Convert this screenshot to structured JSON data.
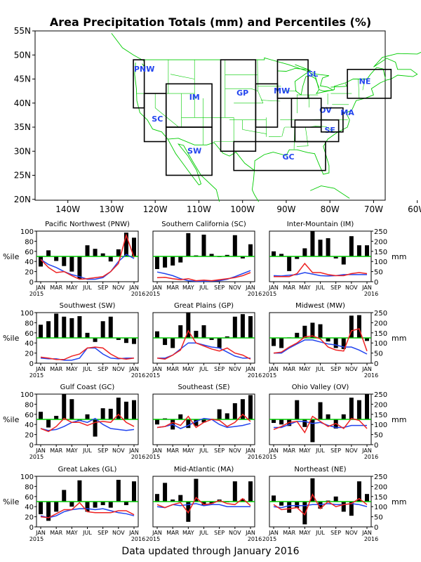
{
  "page": {
    "title": "Area Precipitation Totals (mm) and Percentiles (%)",
    "footer": "Data updated through January 2016"
  },
  "colors": {
    "land_outline": "#00cc00",
    "region_box": "#000000",
    "region_label": "#2244ee",
    "bars": "#000000",
    "pct_line": "#00cc00",
    "precip_line": "#ee2222",
    "normal_line": "#2244ee"
  },
  "map": {
    "lon_ticks": [
      "140W",
      "130W",
      "120W",
      "110W",
      "100W",
      "90W",
      "80W",
      "70W",
      "60W"
    ],
    "lat_ticks": [
      "55N",
      "50N",
      "45N",
      "40N",
      "35N",
      "30N",
      "25N",
      "20N"
    ],
    "regions": [
      "PNW",
      "SC",
      "IM",
      "GP",
      "SW",
      "MW",
      "GL",
      "OV",
      "SE",
      "NE",
      "MA",
      "GC"
    ]
  },
  "axes": {
    "pct_ticks": [
      "0",
      "20",
      "40",
      "60",
      "80",
      "100"
    ],
    "mm_ticks": [
      "0",
      "50",
      "100",
      "150",
      "200",
      "250"
    ],
    "pct_label": "%ile",
    "mm_label": "mm",
    "month_ticks": [
      "JAN",
      "MAR",
      "MAY",
      "JUL",
      "SEP",
      "NOV",
      "JAN"
    ],
    "year_start": "2015",
    "year_end": "2016"
  },
  "chart_data": [
    {
      "type": "bar+line",
      "title": "Pacific Northwest (PNW)",
      "months": [
        "JAN 2015",
        "FEB",
        "MAR",
        "APR",
        "MAY",
        "JUN",
        "JUL",
        "AUG",
        "SEP",
        "OCT",
        "NOV",
        "DEC",
        "JAN 2016"
      ],
      "ylim": [
        0,
        100
      ],
      "y2lim": [
        0,
        250
      ],
      "percentile": [
        30,
        62,
        41,
        31,
        20,
        6,
        72,
        65,
        56,
        40,
        64,
        97,
        87
      ],
      "precip_mm": [
        110,
        70,
        45,
        50,
        30,
        12,
        15,
        20,
        25,
        50,
        90,
        230,
        120
      ],
      "normal_mm": [
        110,
        85,
        70,
        50,
        35,
        25,
        12,
        12,
        20,
        50,
        100,
        135,
        115
      ]
    },
    {
      "type": "bar+line",
      "title": "Southern California (SC)",
      "months": [
        "JAN 2015",
        "FEB",
        "MAR",
        "APR",
        "MAY",
        "JUN",
        "JUL",
        "AUG",
        "SEP",
        "OCT",
        "NOV",
        "DEC",
        "JAN 2016"
      ],
      "ylim": [
        0,
        100
      ],
      "y2lim": [
        0,
        250
      ],
      "percentile": [
        25,
        28,
        32,
        38,
        96,
        52,
        93,
        55,
        50,
        53,
        92,
        46,
        74
      ],
      "precip_mm": [
        20,
        22,
        15,
        10,
        15,
        5,
        8,
        5,
        10,
        15,
        20,
        30,
        45
      ],
      "normal_mm": [
        48,
        40,
        30,
        15,
        5,
        2,
        2,
        3,
        5,
        12,
        25,
        40,
        55
      ]
    },
    {
      "type": "bar+line",
      "title": "Inter-Mountain (IM)",
      "months": [
        "JAN 2015",
        "FEB",
        "MAR",
        "APR",
        "MAY",
        "JUN",
        "JUL",
        "AUG",
        "SEP",
        "OCT",
        "NOV",
        "DEC",
        "JAN 2016"
      ],
      "ylim": [
        0,
        100
      ],
      "y2lim": [
        0,
        250
      ],
      "percentile": [
        60,
        55,
        21,
        45,
        66,
        100,
        83,
        86,
        46,
        34,
        90,
        72,
        72
      ],
      "precip_mm": [
        25,
        25,
        25,
        40,
        90,
        45,
        45,
        35,
        30,
        30,
        40,
        45,
        40
      ],
      "normal_mm": [
        30,
        28,
        32,
        35,
        45,
        38,
        30,
        28,
        30,
        35,
        35,
        35,
        35
      ]
    },
    {
      "type": "bar+line",
      "title": "Southwest (SW)",
      "months": [
        "JAN 2015",
        "FEB",
        "MAR",
        "APR",
        "MAY",
        "JUN",
        "JUL",
        "AUG",
        "SEP",
        "OCT",
        "NOV",
        "DEC",
        "JAN 2016"
      ],
      "ylim": [
        0,
        100
      ],
      "y2lim": [
        0,
        250
      ],
      "percentile": [
        76,
        83,
        98,
        92,
        89,
        93,
        60,
        42,
        83,
        92,
        46,
        40,
        38
      ],
      "precip_mm": [
        30,
        25,
        18,
        18,
        35,
        45,
        75,
        80,
        75,
        45,
        25,
        20,
        25
      ],
      "normal_mm": [
        25,
        22,
        22,
        15,
        15,
        25,
        75,
        75,
        45,
        25,
        22,
        25,
        25
      ]
    },
    {
      "type": "bar+line",
      "title": "Great Plains (GP)",
      "months": [
        "JAN 2015",
        "FEB",
        "MAR",
        "APR",
        "MAY",
        "JUN",
        "JUL",
        "AUG",
        "SEP",
        "OCT",
        "NOV",
        "DEC",
        "JAN 2016"
      ],
      "ylim": [
        0,
        100
      ],
      "y2lim": [
        0,
        250
      ],
      "percentile": [
        63,
        36,
        30,
        75,
        100,
        64,
        75,
        46,
        30,
        53,
        92,
        97,
        93
      ],
      "precip_mm": [
        25,
        20,
        40,
        65,
        160,
        100,
        85,
        70,
        60,
        75,
        50,
        40,
        20
      ],
      "normal_mm": [
        25,
        25,
        40,
        70,
        100,
        100,
        90,
        80,
        75,
        55,
        35,
        25,
        25
      ]
    },
    {
      "type": "bar+line",
      "title": "Midwest (MW)",
      "months": [
        "JAN 2015",
        "FEB",
        "MAR",
        "APR",
        "MAY",
        "JUN",
        "JUL",
        "AUG",
        "SEP",
        "OCT",
        "NOV",
        "DEC",
        "JAN 2016"
      ],
      "ylim": [
        0,
        100
      ],
      "y2lim": [
        0,
        250
      ],
      "percentile": [
        34,
        30,
        51,
        60,
        74,
        80,
        77,
        43,
        30,
        28,
        94,
        95,
        44
      ],
      "precip_mm": [
        50,
        55,
        80,
        100,
        130,
        135,
        120,
        80,
        65,
        60,
        160,
        170,
        60
      ],
      "normal_mm": [
        50,
        50,
        75,
        95,
        115,
        115,
        105,
        95,
        90,
        80,
        80,
        65,
        45
      ]
    },
    {
      "type": "bar+line",
      "title": "Gulf Coast (GC)",
      "months": [
        "JAN 2015",
        "FEB",
        "MAR",
        "APR",
        "MAY",
        "JUN",
        "JUL",
        "AUG",
        "SEP",
        "OCT",
        "NOV",
        "DEC",
        "JAN 2016"
      ],
      "ylim": [
        0,
        100
      ],
      "y2lim": [
        0,
        250
      ],
      "percentile": [
        65,
        34,
        57,
        100,
        90,
        48,
        60,
        16,
        72,
        71,
        93,
        85,
        88
      ],
      "precip_mm": [
        80,
        65,
        90,
        130,
        110,
        110,
        95,
        110,
        115,
        110,
        150,
        110,
        90
      ],
      "normal_mm": [
        80,
        70,
        75,
        90,
        110,
        120,
        110,
        130,
        100,
        80,
        75,
        70,
        75
      ]
    },
    {
      "type": "bar+line",
      "title": "Southeast (SE)",
      "months": [
        "JAN 2015",
        "FEB",
        "MAR",
        "APR",
        "MAY",
        "JUN",
        "JUL",
        "AUG",
        "SEP",
        "OCT",
        "NOV",
        "DEC",
        "JAN 2016"
      ],
      "ylim": [
        0,
        100
      ],
      "y2lim": [
        0,
        250
      ],
      "percentile": [
        40,
        52,
        30,
        60,
        33,
        37,
        44,
        51,
        70,
        62,
        82,
        90,
        98
      ],
      "precip_mm": [
        85,
        90,
        110,
        95,
        140,
        85,
        110,
        125,
        120,
        90,
        110,
        150,
        115
      ],
      "normal_mm": [
        85,
        90,
        100,
        80,
        95,
        115,
        130,
        125,
        100,
        85,
        90,
        95,
        105
      ]
    },
    {
      "type": "bar+line",
      "title": "Ohio Valley (OV)",
      "months": [
        "JAN 2015",
        "FEB",
        "MAR",
        "APR",
        "MAY",
        "JUN",
        "JUL",
        "AUG",
        "SEP",
        "OCT",
        "NOV",
        "DEC",
        "JAN 2016"
      ],
      "ylim": [
        0,
        100
      ],
      "y2lim": [
        0,
        250
      ],
      "percentile": [
        43,
        40,
        37,
        88,
        35,
        5,
        84,
        60,
        32,
        60,
        93,
        88,
        100
      ],
      "precip_mm": [
        75,
        90,
        110,
        115,
        60,
        140,
        115,
        90,
        105,
        80,
        130,
        120,
        80
      ],
      "normal_mm": [
        85,
        85,
        100,
        115,
        115,
        105,
        110,
        95,
        85,
        85,
        95,
        95,
        95
      ]
    },
    {
      "type": "bar+line",
      "title": "Great Lakes (GL)",
      "months": [
        "JAN 2015",
        "FEB",
        "MAR",
        "APR",
        "MAY",
        "JUN",
        "JUL",
        "AUG",
        "SEP",
        "OCT",
        "NOV",
        "DEC",
        "JAN 2016"
      ],
      "ylim": [
        0,
        100
      ],
      "y2lim": [
        0,
        250
      ],
      "percentile": [
        25,
        12,
        30,
        73,
        40,
        92,
        30,
        38,
        43,
        38,
        93,
        43,
        90
      ],
      "precip_mm": [
        50,
        45,
        65,
        85,
        85,
        120,
        75,
        70,
        70,
        70,
        80,
        80,
        60
      ],
      "normal_mm": [
        55,
        45,
        55,
        75,
        85,
        90,
        90,
        85,
        90,
        80,
        70,
        65,
        55
      ]
    },
    {
      "type": "bar+line",
      "title": "Mid-Atlantic (MA)",
      "months": [
        "JAN 2015",
        "FEB",
        "MAR",
        "APR",
        "MAY",
        "JUN",
        "JUL",
        "AUG",
        "SEP",
        "OCT",
        "NOV",
        "DEC",
        "JAN 2016"
      ],
      "ylim": [
        0,
        100
      ],
      "y2lim": [
        0,
        250
      ],
      "percentile": [
        65,
        87,
        54,
        63,
        10,
        95,
        42,
        46,
        54,
        50,
        90,
        55,
        90
      ],
      "precip_mm": [
        110,
        95,
        110,
        120,
        70,
        145,
        110,
        115,
        130,
        115,
        110,
        140,
        105
      ],
      "normal_mm": [
        100,
        95,
        110,
        105,
        110,
        115,
        105,
        110,
        110,
        100,
        100,
        100,
        100
      ]
    },
    {
      "type": "bar+line",
      "title": "Northeast (NE)",
      "months": [
        "JAN 2015",
        "FEB",
        "MAR",
        "APR",
        "MAY",
        "JUN",
        "JUL",
        "AUG",
        "SEP",
        "OCT",
        "NOV",
        "DEC",
        "JAN 2016"
      ],
      "ylim": [
        0,
        100
      ],
      "y2lim": [
        0,
        250
      ],
      "percentile": [
        62,
        42,
        28,
        37,
        5,
        96,
        36,
        52,
        60,
        30,
        22,
        90,
        65
      ],
      "precip_mm": [
        110,
        85,
        90,
        95,
        60,
        160,
        90,
        125,
        100,
        110,
        115,
        140,
        110
      ],
      "normal_mm": [
        100,
        95,
        105,
        105,
        105,
        110,
        110,
        115,
        110,
        110,
        115,
        110,
        100
      ]
    }
  ]
}
